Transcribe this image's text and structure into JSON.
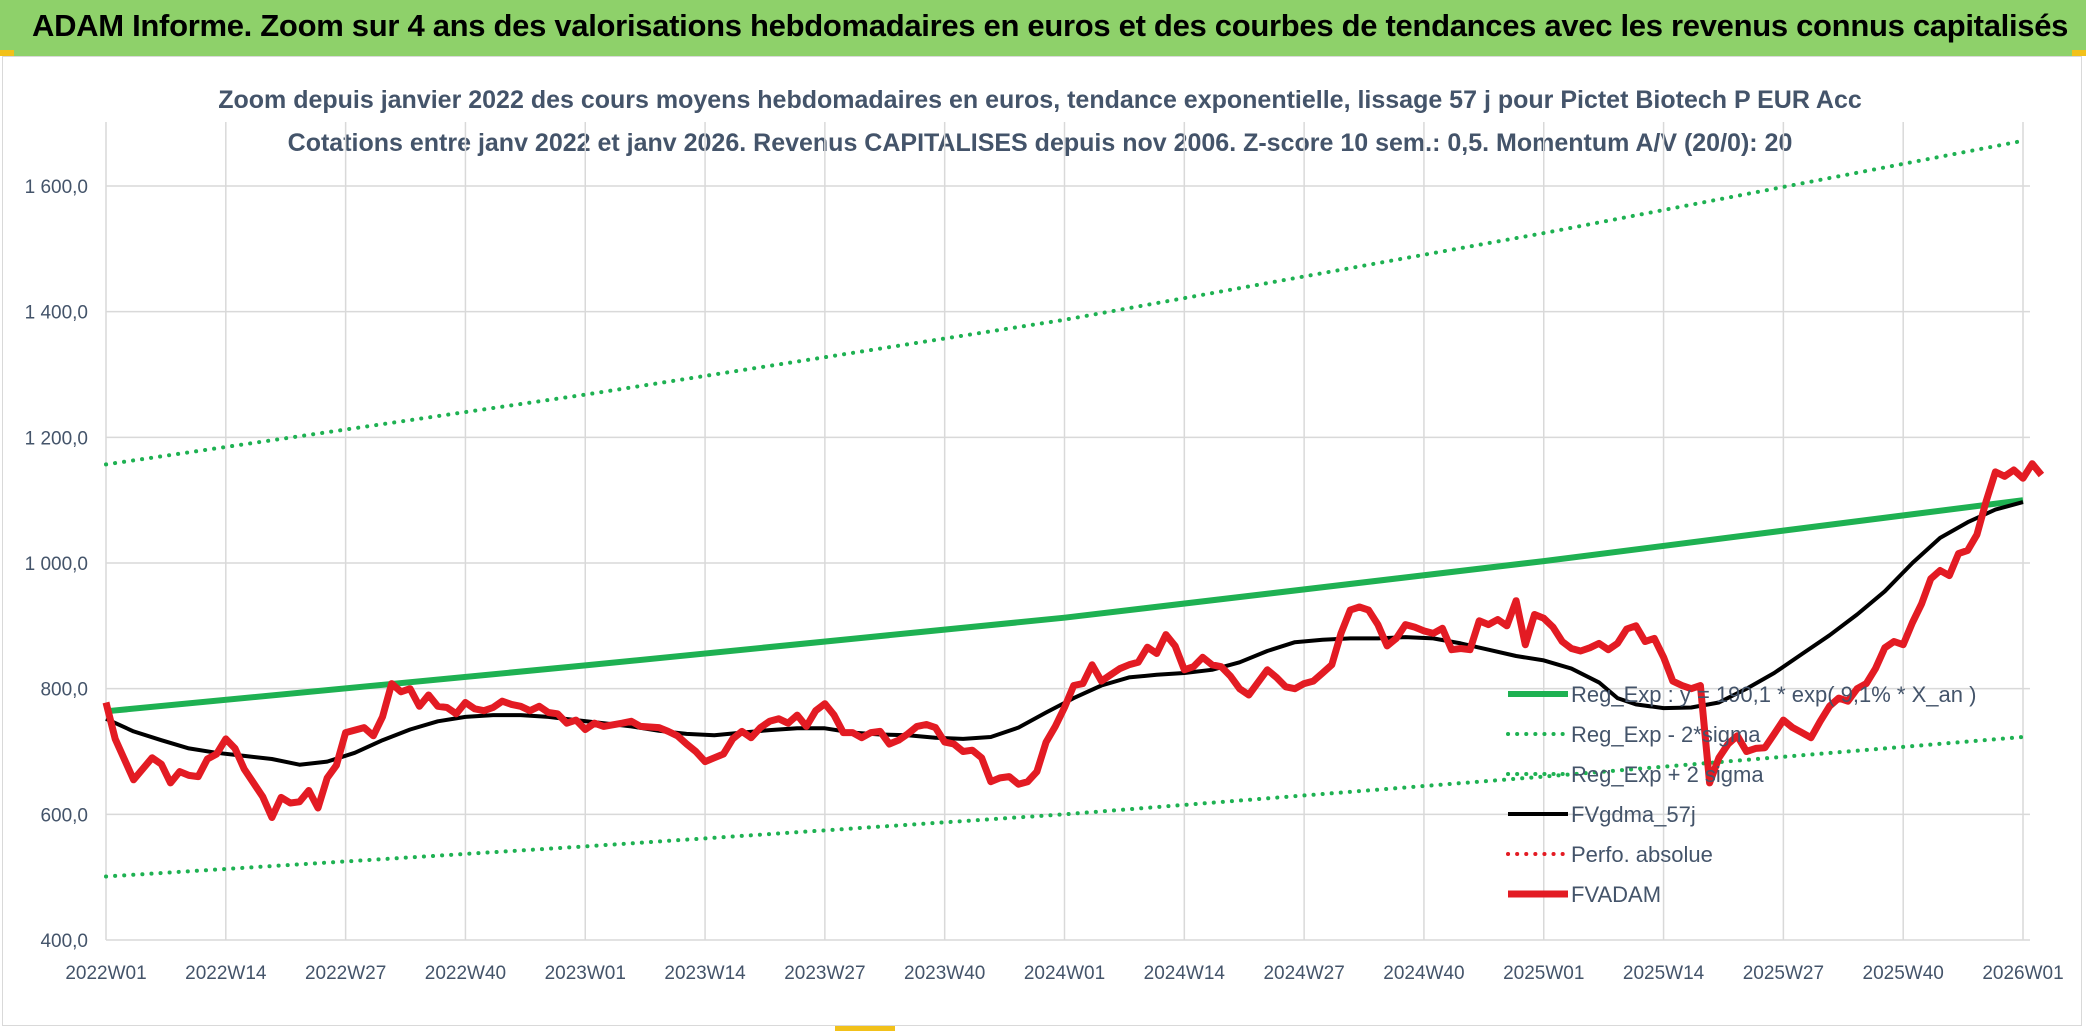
{
  "banner": {
    "title": "ADAM Informe. Zoom sur 4 ans des valorisations hebdomadaires en euros et des courbes de tendances avec les revenus connus capitalisés",
    "background": "#8ed16a",
    "accent": "#f2c11a"
  },
  "chart_data": {
    "type": "line",
    "title_line1": "Zoom depuis janvier 2022 des cours moyens hebdomadaires en euros, tendance exponentielle, lissage 57 j pour Pictet Biotech P EUR Acc",
    "title_line2": "Cotations entre janv 2022 et janv 2026. Revenus CAPITALISES depuis nov 2006. Z-score 10 sem.: 0,5. Momentum A/V (20/0): 20",
    "x_tick_labels": [
      "2022W01",
      "2022W14",
      "2022W27",
      "2022W40",
      "2023W01",
      "2023W14",
      "2023W27",
      "2023W40",
      "2024W01",
      "2024W14",
      "2024W27",
      "2024W40",
      "2025W01",
      "2025W14",
      "2025W27",
      "2025W40",
      "2026W01"
    ],
    "x_range_weeks": [
      0,
      208
    ],
    "ylim": [
      400,
      1700
    ],
    "y_ticks": [
      400,
      600,
      800,
      1000,
      1200,
      1400,
      1600
    ],
    "y_tick_labels": [
      "400,0",
      "600,0",
      "800,0",
      "1 000,0",
      "1 200,0",
      "1 400,0",
      "1 600,0"
    ],
    "grid": true,
    "legend_position": "bottom-right",
    "series": [
      {
        "name": "Reg_Exp : y = 190,1 * exp( 9,1% *  X_an )",
        "color": "#1eb152",
        "style": "solid",
        "width": 6,
        "points": [
          [
            0,
            764
          ],
          [
            52,
            837
          ],
          [
            104,
            913
          ],
          [
            156,
            1003
          ],
          [
            208,
            1100
          ]
        ]
      },
      {
        "name": "Reg_Exp - 2*sigma",
        "color": "#1eb152",
        "style": "dotted",
        "width": 4,
        "points": [
          [
            0,
            501
          ],
          [
            52,
            549
          ],
          [
            104,
            600
          ],
          [
            156,
            660
          ],
          [
            208,
            723
          ]
        ]
      },
      {
        "name": "Reg_Exp + 2 sigma",
        "color": "#1eb152",
        "style": "dotted",
        "width": 4,
        "points": [
          [
            0,
            1157
          ],
          [
            52,
            1268
          ],
          [
            104,
            1387
          ],
          [
            156,
            1525
          ],
          [
            208,
            1672
          ]
        ]
      },
      {
        "name": "FVgdma_57j",
        "color": "#000000",
        "style": "solid",
        "width": 4,
        "points": [
          [
            0,
            752
          ],
          [
            3,
            732
          ],
          [
            6,
            718
          ],
          [
            9,
            705
          ],
          [
            12,
            698
          ],
          [
            15,
            693
          ],
          [
            18,
            688
          ],
          [
            21,
            679
          ],
          [
            24,
            684
          ],
          [
            27,
            698
          ],
          [
            30,
            718
          ],
          [
            33,
            735
          ],
          [
            36,
            748
          ],
          [
            39,
            755
          ],
          [
            42,
            758
          ],
          [
            45,
            758
          ],
          [
            48,
            755
          ],
          [
            51,
            750
          ],
          [
            54,
            745
          ],
          [
            57,
            740
          ],
          [
            60,
            733
          ],
          [
            63,
            728
          ],
          [
            66,
            726
          ],
          [
            69,
            730
          ],
          [
            72,
            734
          ],
          [
            75,
            737
          ],
          [
            78,
            737
          ],
          [
            81,
            730
          ],
          [
            84,
            727
          ],
          [
            87,
            726
          ],
          [
            90,
            722
          ],
          [
            93,
            720
          ],
          [
            96,
            723
          ],
          [
            99,
            738
          ],
          [
            102,
            762
          ],
          [
            105,
            785
          ],
          [
            108,
            805
          ],
          [
            111,
            818
          ],
          [
            114,
            822
          ],
          [
            117,
            825
          ],
          [
            120,
            830
          ],
          [
            123,
            842
          ],
          [
            126,
            860
          ],
          [
            129,
            874
          ],
          [
            132,
            878
          ],
          [
            135,
            880
          ],
          [
            138,
            880
          ],
          [
            141,
            882
          ],
          [
            144,
            880
          ],
          [
            147,
            872
          ],
          [
            150,
            862
          ],
          [
            153,
            852
          ],
          [
            156,
            845
          ],
          [
            159,
            832
          ],
          [
            162,
            810
          ],
          [
            164,
            785
          ],
          [
            166,
            775
          ],
          [
            169,
            769
          ],
          [
            172,
            770
          ],
          [
            175,
            778
          ],
          [
            178,
            800
          ],
          [
            181,
            825
          ],
          [
            184,
            855
          ],
          [
            187,
            885
          ],
          [
            190,
            918
          ],
          [
            193,
            955
          ],
          [
            196,
            1000
          ],
          [
            199,
            1040
          ],
          [
            202,
            1065
          ],
          [
            205,
            1085
          ],
          [
            208,
            1097
          ]
        ]
      },
      {
        "name": "Perfo. absolue",
        "color": "#e31b23",
        "style": "dotted",
        "width": 4,
        "points": []
      },
      {
        "name": "FVADAM",
        "color": "#e31b23",
        "style": "solid",
        "width": 7,
        "points": [
          [
            0,
            778
          ],
          [
            1,
            720
          ],
          [
            3,
            655
          ],
          [
            5,
            690
          ],
          [
            6,
            680
          ],
          [
            7,
            650
          ],
          [
            8,
            668
          ],
          [
            9,
            662
          ],
          [
            10,
            660
          ],
          [
            11,
            688
          ],
          [
            12,
            696
          ],
          [
            13,
            720
          ],
          [
            14,
            705
          ],
          [
            15,
            672
          ],
          [
            17,
            628
          ],
          [
            18,
            595
          ],
          [
            19,
            627
          ],
          [
            20,
            618
          ],
          [
            21,
            620
          ],
          [
            22,
            638
          ],
          [
            23,
            610
          ],
          [
            24,
            658
          ],
          [
            25,
            678
          ],
          [
            26,
            730
          ],
          [
            28,
            738
          ],
          [
            29,
            725
          ],
          [
            30,
            755
          ],
          [
            31,
            808
          ],
          [
            32,
            795
          ],
          [
            33,
            800
          ],
          [
            34,
            772
          ],
          [
            35,
            790
          ],
          [
            36,
            772
          ],
          [
            37,
            770
          ],
          [
            38,
            760
          ],
          [
            39,
            778
          ],
          [
            40,
            768
          ],
          [
            41,
            765
          ],
          [
            42,
            770
          ],
          [
            43,
            780
          ],
          [
            44,
            775
          ],
          [
            45,
            772
          ],
          [
            46,
            765
          ],
          [
            47,
            772
          ],
          [
            48,
            762
          ],
          [
            49,
            760
          ],
          [
            50,
            745
          ],
          [
            51,
            750
          ],
          [
            52,
            735
          ],
          [
            53,
            745
          ],
          [
            54,
            740
          ],
          [
            56,
            745
          ],
          [
            57,
            748
          ],
          [
            58,
            740
          ],
          [
            60,
            738
          ],
          [
            61,
            732
          ],
          [
            62,
            725
          ],
          [
            63,
            712
          ],
          [
            64,
            700
          ],
          [
            65,
            684
          ],
          [
            66,
            690
          ],
          [
            67,
            696
          ],
          [
            68,
            720
          ],
          [
            69,
            732
          ],
          [
            70,
            722
          ],
          [
            71,
            738
          ],
          [
            72,
            748
          ],
          [
            73,
            752
          ],
          [
            74,
            745
          ],
          [
            75,
            758
          ],
          [
            76,
            740
          ],
          [
            77,
            765
          ],
          [
            78,
            776
          ],
          [
            79,
            758
          ],
          [
            80,
            730
          ],
          [
            81,
            730
          ],
          [
            82,
            722
          ],
          [
            83,
            730
          ],
          [
            84,
            732
          ],
          [
            85,
            712
          ],
          [
            86,
            718
          ],
          [
            87,
            728
          ],
          [
            88,
            740
          ],
          [
            89,
            743
          ],
          [
            90,
            738
          ],
          [
            91,
            715
          ],
          [
            92,
            712
          ],
          [
            93,
            700
          ],
          [
            94,
            702
          ],
          [
            95,
            690
          ],
          [
            96,
            652
          ],
          [
            97,
            658
          ],
          [
            98,
            660
          ],
          [
            99,
            648
          ],
          [
            100,
            652
          ],
          [
            101,
            668
          ],
          [
            102,
            715
          ],
          [
            103,
            740
          ],
          [
            104,
            770
          ],
          [
            105,
            805
          ],
          [
            106,
            808
          ],
          [
            107,
            838
          ],
          [
            108,
            812
          ],
          [
            109,
            822
          ],
          [
            110,
            832
          ],
          [
            111,
            838
          ],
          [
            112,
            842
          ],
          [
            113,
            866
          ],
          [
            114,
            856
          ],
          [
            115,
            886
          ],
          [
            116,
            868
          ],
          [
            117,
            830
          ],
          [
            118,
            835
          ],
          [
            119,
            850
          ],
          [
            120,
            838
          ],
          [
            121,
            835
          ],
          [
            122,
            820
          ],
          [
            123,
            800
          ],
          [
            124,
            790
          ],
          [
            125,
            810
          ],
          [
            126,
            830
          ],
          [
            127,
            818
          ],
          [
            128,
            803
          ],
          [
            129,
            800
          ],
          [
            130,
            808
          ],
          [
            131,
            812
          ],
          [
            132,
            825
          ],
          [
            133,
            838
          ],
          [
            134,
            888
          ],
          [
            135,
            925
          ],
          [
            136,
            930
          ],
          [
            137,
            925
          ],
          [
            138,
            902
          ],
          [
            139,
            868
          ],
          [
            140,
            880
          ],
          [
            141,
            902
          ],
          [
            142,
            898
          ],
          [
            143,
            892
          ],
          [
            144,
            888
          ],
          [
            145,
            896
          ],
          [
            146,
            862
          ],
          [
            147,
            864
          ],
          [
            148,
            862
          ],
          [
            149,
            908
          ],
          [
            150,
            902
          ],
          [
            151,
            910
          ],
          [
            152,
            900
          ],
          [
            153,
            940
          ],
          [
            154,
            870
          ],
          [
            155,
            918
          ],
          [
            156,
            912
          ],
          [
            157,
            898
          ],
          [
            158,
            875
          ],
          [
            159,
            864
          ],
          [
            160,
            860
          ],
          [
            161,
            865
          ],
          [
            162,
            872
          ],
          [
            163,
            862
          ],
          [
            164,
            872
          ],
          [
            165,
            895
          ],
          [
            166,
            900
          ],
          [
            167,
            875
          ],
          [
            168,
            880
          ],
          [
            169,
            850
          ],
          [
            170,
            812
          ],
          [
            171,
            805
          ],
          [
            172,
            800
          ],
          [
            173,
            805
          ],
          [
            174,
            650
          ],
          [
            175,
            690
          ],
          [
            176,
            712
          ],
          [
            177,
            725
          ],
          [
            178,
            700
          ],
          [
            179,
            705
          ],
          [
            180,
            706
          ],
          [
            181,
            728
          ],
          [
            182,
            750
          ],
          [
            183,
            738
          ],
          [
            184,
            730
          ],
          [
            185,
            722
          ],
          [
            186,
            748
          ],
          [
            187,
            772
          ],
          [
            188,
            785
          ],
          [
            189,
            780
          ],
          [
            190,
            800
          ],
          [
            191,
            808
          ],
          [
            192,
            832
          ],
          [
            193,
            865
          ],
          [
            194,
            875
          ],
          [
            195,
            870
          ],
          [
            196,
            905
          ],
          [
            197,
            935
          ],
          [
            198,
            975
          ],
          [
            199,
            988
          ],
          [
            200,
            980
          ],
          [
            201,
            1015
          ],
          [
            202,
            1020
          ],
          [
            203,
            1045
          ],
          [
            204,
            1098
          ],
          [
            205,
            1145
          ],
          [
            206,
            1138
          ],
          [
            207,
            1148
          ],
          [
            208,
            1135
          ],
          [
            209,
            1158
          ],
          [
            210,
            1140
          ]
        ]
      }
    ]
  }
}
